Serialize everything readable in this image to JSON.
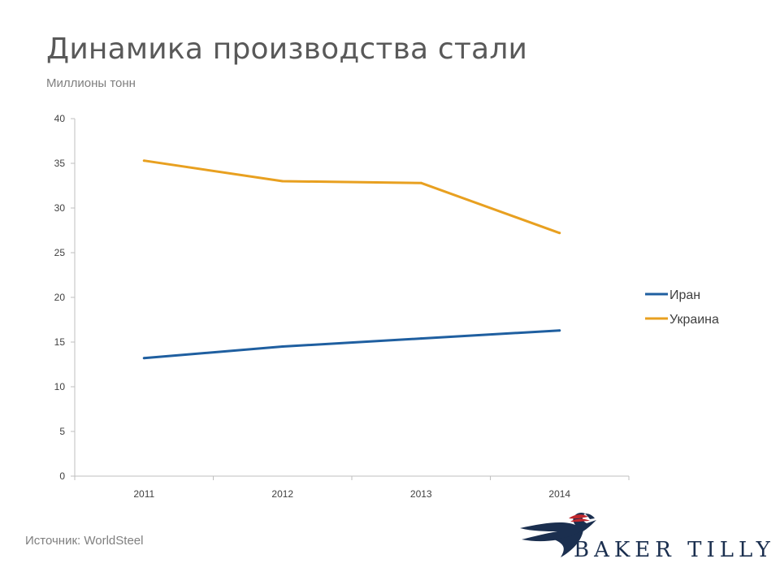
{
  "header": {
    "title": "Динамика производства стали",
    "subtitle": "Миллионы тонн"
  },
  "footer": {
    "source": "Источник: WorldSteel",
    "logo_text": "BAKER TILLY"
  },
  "chart_data": {
    "type": "line",
    "categories": [
      "2011",
      "2012",
      "2013",
      "2014"
    ],
    "series": [
      {
        "name": "Иран",
        "color": "#1f5fa0",
        "values": [
          13.2,
          14.5,
          15.4,
          16.3
        ]
      },
      {
        "name": "Украина",
        "color": "#e8a020",
        "values": [
          35.3,
          33.0,
          32.8,
          27.2
        ]
      }
    ],
    "ylim": [
      0,
      40
    ],
    "yticks": [
      0,
      5,
      10,
      15,
      20,
      25,
      30,
      35,
      40
    ],
    "grid": false,
    "legend": "right",
    "axis_color": "#bfbfbf",
    "tick_label_color": "#404040"
  }
}
